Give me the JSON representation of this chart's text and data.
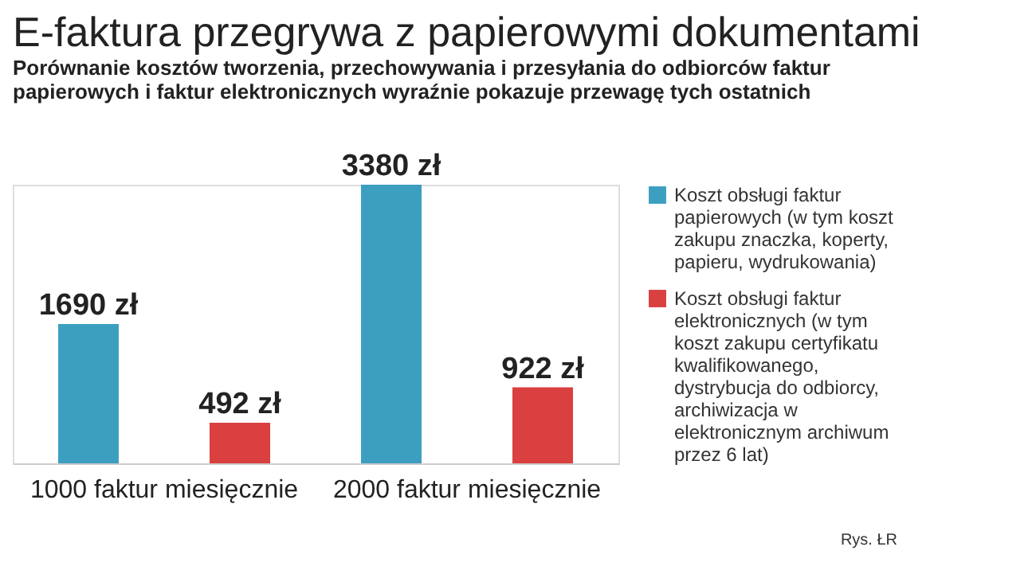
{
  "chart_data": {
    "type": "bar",
    "title": "E-faktura przegrywa z papierowymi dokumentami",
    "subtitle": "Porównanie kosztów tworzenia, przechowywania i przesyłania do odbiorców faktur papierowych i faktur elektronicznych wyraźnie pokazuje przewagę tych ostatnich",
    "categories": [
      "1000 faktur miesięcznie",
      "2000 faktur miesięcznie"
    ],
    "series": [
      {
        "name": "Koszt obsługi faktur papierowych (w tym koszt zakupu znaczka, koperty, papieru, wydrukowania)",
        "color": "#3d9fc0",
        "values": [
          1690,
          3380
        ],
        "value_labels": [
          "1690 zł",
          "3380 zł"
        ]
      },
      {
        "name": "Koszt obsługi faktur elektronicznych (w tym koszt zakupu certyfikatu kwalifikowanego, dystrybucja do odbiorcy, archiwizacja w elektronicznym archiwum przez 6 lat)",
        "color": "#d9403f",
        "values": [
          492,
          922
        ],
        "value_labels": [
          "492 zł",
          "922 zł"
        ]
      }
    ],
    "legend": "right",
    "grid": false,
    "annotations": [
      "Rys. ŁR"
    ]
  }
}
